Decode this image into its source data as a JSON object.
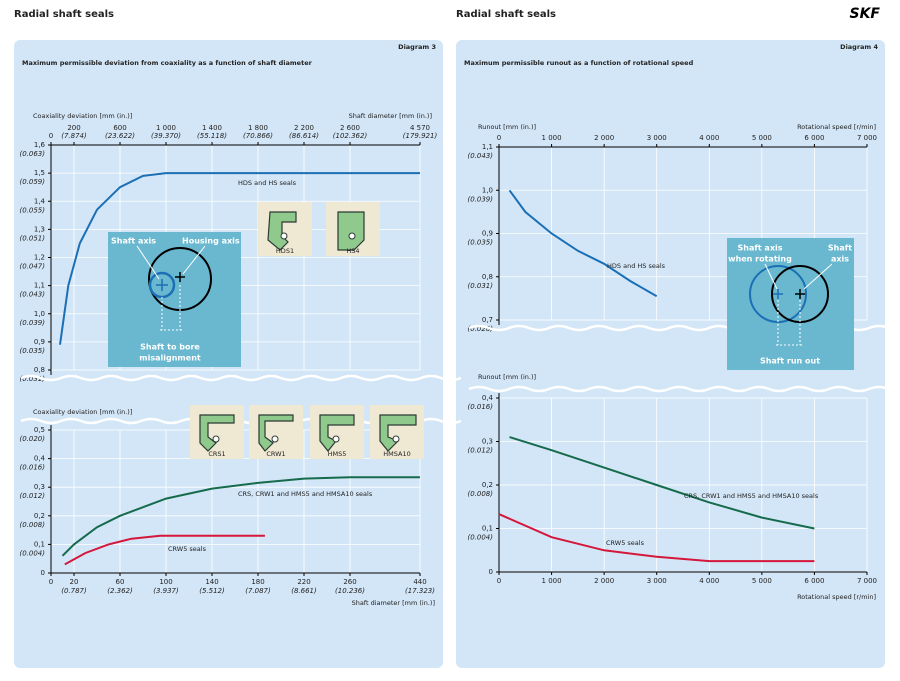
{
  "header": {
    "left_title": "Radial shaft seals",
    "right_title": "Radial shaft seals",
    "logo": "SKF"
  },
  "panels": [
    {
      "label": "Diagram 3",
      "subtitle": "Maximum permissible deviation from coaxiality as a function of shaft diameter",
      "seals": [
        "HDS1",
        "HS4",
        "CRS1",
        "CRW1",
        "HMS5",
        "HMSA10"
      ],
      "inset": [
        "Shaft axis",
        "Housing  axis",
        "Shaft to bore",
        "misalignment"
      ]
    },
    {
      "label": "Diagram 4",
      "subtitle": "Maximum permissible runout as a function of rotational speed",
      "inset": [
        "Shaft axis",
        "when rotating",
        "Shaft",
        "axis",
        "Shaft run out"
      ]
    }
  ],
  "chart_data": [
    {
      "type": "line",
      "xlabel": "Shaft diameter [mm (in.)]",
      "ylabel": "Coaxiality deviation [mm (in.)]",
      "xlim": [
        0,
        4570
      ],
      "ylim": [
        0.8,
        1.6
      ],
      "grid": true,
      "xticks": [
        0,
        {
          "value": 200,
          "label": "200",
          "label_in": "(7.874)"
        },
        {
          "value": 600,
          "label": "600",
          "label_in": "(23.622)"
        },
        {
          "value": 1000,
          "label": "1 000",
          "label_in": "(39.370)"
        },
        {
          "value": 1400,
          "label": "1 400",
          "label_in": "(55.118)"
        },
        {
          "value": 1800,
          "label": "1 800",
          "label_in": "(70.866)"
        },
        {
          "value": 2200,
          "label": "2 200",
          "label_in": "(86.614)"
        },
        {
          "value": 2600,
          "label": "2 600",
          "label_in": "(102.362)"
        },
        {
          "value": 4570,
          "label": "4 570",
          "label_in": "(179.921)"
        }
      ],
      "yticks": [
        {
          "value": 1.6,
          "label": "1,6",
          "label_in": "(0.063)"
        },
        {
          "value": 1.5,
          "label": "1,5",
          "label_in": "(0.059)"
        },
        {
          "value": 1.4,
          "label": "1,4",
          "label_in": "(0.055)"
        },
        {
          "value": 1.3,
          "label": "1,3",
          "label_in": "(0.051)"
        },
        {
          "value": 1.2,
          "label": "1,2",
          "label_in": "(0.047)"
        },
        {
          "value": 1.1,
          "label": "1,1",
          "label_in": "(0.043)"
        },
        {
          "value": 1.0,
          "label": "1,0",
          "label_in": "(0.039)"
        },
        {
          "value": 0.9,
          "label": "0,9",
          "label_in": "(0.035)"
        },
        {
          "value": 0.8,
          "label": "0,8",
          "label_in": "(0.031)"
        }
      ],
      "series": [
        {
          "name": "HDS and HS seals",
          "color": "#1b6fb5",
          "x": [
            78,
            150,
            250,
            400,
            600,
            800,
            1000,
            4570
          ],
          "values": [
            0.89,
            1.1,
            1.25,
            1.37,
            1.45,
            1.49,
            1.5,
            1.5
          ]
        }
      ]
    },
    {
      "type": "line",
      "xlabel": "Shaft diameter [mm (in.)]",
      "ylabel": "Coaxiality deviation [mm (in.)]",
      "xlim": [
        0,
        440
      ],
      "ylim": [
        0,
        0.5
      ],
      "grid": true,
      "xticks": [
        0,
        {
          "value": 20,
          "label": "20",
          "label_in": "(0.787)"
        },
        {
          "value": 60,
          "label": "60",
          "label_in": "(2.362)"
        },
        {
          "value": 100,
          "label": "100",
          "label_in": "(3.937)"
        },
        {
          "value": 140,
          "label": "140",
          "label_in": "(5.512)"
        },
        {
          "value": 180,
          "label": "180",
          "label_in": "(7.087)"
        },
        {
          "value": 220,
          "label": "220",
          "label_in": "(8.661)"
        },
        {
          "value": 260,
          "label": "260",
          "label_in": "(10.236)"
        },
        {
          "value": 440,
          "label": "440",
          "label_in": "(17.323)"
        }
      ],
      "yticks": [
        0,
        {
          "value": 0.1,
          "label": "0,1",
          "label_in": "(0.004)"
        },
        {
          "value": 0.2,
          "label": "0,2",
          "label_in": "(0.008)"
        },
        {
          "value": 0.3,
          "label": "0,3",
          "label_in": "(0.012)"
        },
        {
          "value": 0.4,
          "label": "0,4",
          "label_in": "(0.016)"
        },
        {
          "value": 0.5,
          "label": "0,5",
          "label_in": "(0.020)"
        }
      ],
      "series": [
        {
          "name": "CRS, CRW1 and HMS5 and HMSA10 seals",
          "color": "#156b4b",
          "x": [
            10,
            20,
            40,
            60,
            100,
            140,
            180,
            220,
            260,
            440
          ],
          "values": [
            0.06,
            0.1,
            0.16,
            0.2,
            0.26,
            0.295,
            0.315,
            0.33,
            0.335,
            0.335
          ]
        },
        {
          "name": "CRW5 seals",
          "color": "#d4173a",
          "x": [
            12,
            30,
            50,
            70,
            95,
            140,
            186
          ],
          "values": [
            0.03,
            0.07,
            0.1,
            0.12,
            0.13,
            0.13,
            0.13
          ]
        }
      ]
    },
    {
      "type": "line",
      "xlabel": "Rotational speed [r/min]",
      "ylabel": "Runout [mm (in.)]",
      "xlim": [
        0,
        7000
      ],
      "ylim": [
        0.7,
        1.1
      ],
      "grid": true,
      "xticks": [
        0,
        {
          "value": 1000,
          "label": "1 000"
        },
        {
          "value": 2000,
          "label": "2 000"
        },
        {
          "value": 3000,
          "label": "3 000"
        },
        {
          "value": 4000,
          "label": "4 000"
        },
        {
          "value": 5000,
          "label": "5 000"
        },
        {
          "value": 6000,
          "label": "6 000"
        },
        {
          "value": 7000,
          "label": "7 000"
        }
      ],
      "yticks": [
        {
          "value": 1.1,
          "label": "1,1",
          "label_in": "(0.043)"
        },
        {
          "value": 1.0,
          "label": "1,0",
          "label_in": "(0.039)"
        },
        {
          "value": 0.9,
          "label": "0,9",
          "label_in": "(0.035)"
        },
        {
          "value": 0.8,
          "label": "0,8",
          "label_in": "(0.031)"
        },
        {
          "value": 0.7,
          "label": "0,7",
          "label_in": "(0.028)"
        }
      ],
      "series": [
        {
          "name": "HDS and HS seals",
          "color": "#1b6fb5",
          "x": [
            200,
            500,
            1000,
            1500,
            2000,
            2500,
            3000
          ],
          "values": [
            1.0,
            0.95,
            0.9,
            0.86,
            0.83,
            0.79,
            0.755
          ]
        }
      ]
    },
    {
      "type": "line",
      "xlabel": "Rotational speed [r/min]",
      "ylabel": "Runout [mm (in.)]",
      "xlim": [
        0,
        7000
      ],
      "ylim": [
        0,
        0.4
      ],
      "grid": true,
      "xticks": [
        0,
        {
          "value": 1000,
          "label": "1 000"
        },
        {
          "value": 2000,
          "label": "2 000"
        },
        {
          "value": 3000,
          "label": "3 000"
        },
        {
          "value": 4000,
          "label": "4 000"
        },
        {
          "value": 5000,
          "label": "5 000"
        },
        {
          "value": 6000,
          "label": "6 000"
        },
        {
          "value": 7000,
          "label": "7 000"
        }
      ],
      "yticks": [
        0,
        {
          "value": 0.1,
          "label": "0,1",
          "label_in": "(0.004)"
        },
        {
          "value": 0.2,
          "label": "0,2",
          "label_in": "(0.008)"
        },
        {
          "value": 0.3,
          "label": "0,3",
          "label_in": "(0.012)"
        },
        {
          "value": 0.4,
          "label": "0,4",
          "label_in": "(0.016)"
        }
      ],
      "series": [
        {
          "name": "CRS, CRW1 and HMS5 and HMSA10 seals",
          "color": "#156b4b",
          "x": [
            200,
            1000,
            2000,
            3000,
            4000,
            5000,
            6000
          ],
          "values": [
            0.31,
            0.28,
            0.24,
            0.2,
            0.16,
            0.125,
            0.1
          ]
        },
        {
          "name": "CRW5 seals",
          "color": "#d4173a",
          "x": [
            0,
            1000,
            2000,
            3000,
            4000,
            5000,
            6000
          ],
          "values": [
            0.133,
            0.08,
            0.05,
            0.035,
            0.025,
            0.025,
            0.025
          ]
        }
      ]
    }
  ]
}
